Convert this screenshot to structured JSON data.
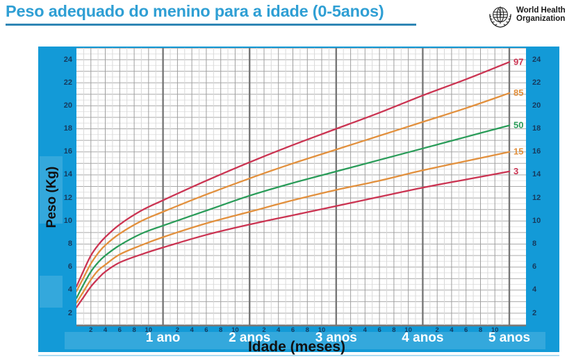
{
  "header": {
    "title": "Peso adequado do menino para a idade (0-5anos)",
    "logo": {
      "name": "World Health Organization",
      "line1": "World Health",
      "line2": "Organization"
    }
  },
  "colors": {
    "title_blue": "#2f9fd4",
    "underline_blue": "#2f86b5",
    "panel_blue": "#139ad7",
    "axis_navy": "#17395c",
    "year_label": "#ffffff",
    "percentile_red": "#cb3452",
    "percentile_orange": "#e2903d",
    "percentile_green": "#2a9c59"
  },
  "chart": {
    "ylabel": "Peso (Kg)",
    "xlabel": "Idade (meses)",
    "y_ticks": [
      2,
      4,
      6,
      8,
      10,
      12,
      14,
      16,
      18,
      20,
      22,
      24
    ],
    "month_ticks": [
      2,
      4,
      6,
      8,
      10
    ],
    "year_labels": [
      "1 ano",
      "2 anos",
      "3 anos",
      "4 anos",
      "5 anos"
    ]
  },
  "chart_data": {
    "type": "line",
    "title": "Peso adequado do menino para a idade (0-5anos)",
    "xlabel": "Idade (meses)",
    "ylabel": "Peso (Kg)",
    "x_months": [
      0,
      1,
      2,
      3,
      4,
      6,
      9,
      12,
      18,
      24,
      30,
      36,
      42,
      48,
      54,
      60
    ],
    "series": [
      {
        "name": "97",
        "color": "#cb3452",
        "values": [
          4.3,
          5.7,
          7.0,
          7.9,
          8.6,
          9.7,
          10.9,
          11.8,
          13.5,
          15.1,
          16.6,
          18.0,
          19.4,
          20.9,
          22.3,
          23.8
        ]
      },
      {
        "name": "85",
        "color": "#e2903d",
        "values": [
          3.9,
          5.1,
          6.3,
          7.2,
          7.9,
          8.9,
          10.0,
          10.8,
          12.3,
          13.7,
          15.0,
          16.2,
          17.4,
          18.6,
          19.8,
          21.1
        ]
      },
      {
        "name": "50",
        "color": "#2a9c59",
        "values": [
          3.3,
          4.5,
          5.6,
          6.4,
          7.0,
          7.9,
          8.9,
          9.6,
          10.9,
          12.2,
          13.3,
          14.3,
          15.3,
          16.3,
          17.3,
          18.3
        ]
      },
      {
        "name": "15",
        "color": "#e2903d",
        "values": [
          2.9,
          3.9,
          4.9,
          5.7,
          6.2,
          7.1,
          7.9,
          8.6,
          9.8,
          10.8,
          11.8,
          12.7,
          13.5,
          14.4,
          15.2,
          16.0
        ]
      },
      {
        "name": "3",
        "color": "#cb3452",
        "values": [
          2.5,
          3.4,
          4.3,
          5.0,
          5.6,
          6.4,
          7.1,
          7.7,
          8.8,
          9.7,
          10.5,
          11.3,
          12.1,
          12.9,
          13.6,
          14.3
        ]
      }
    ],
    "xlim": [
      0,
      62.3
    ],
    "ylim": [
      0.85,
      25.0
    ],
    "grid": "on",
    "legend": "percentile labels at right end of curves"
  }
}
